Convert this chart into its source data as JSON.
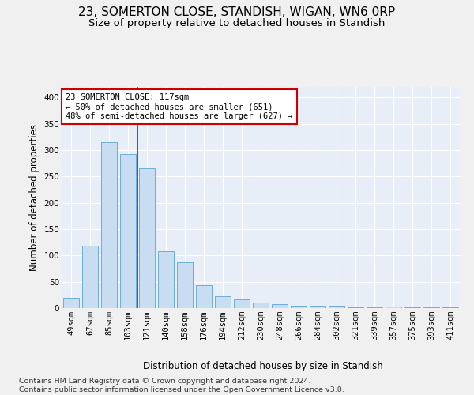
{
  "title": "23, SOMERTON CLOSE, STANDISH, WIGAN, WN6 0RP",
  "subtitle": "Size of property relative to detached houses in Standish",
  "xlabel": "Distribution of detached houses by size in Standish",
  "ylabel": "Number of detached properties",
  "categories": [
    "49sqm",
    "67sqm",
    "85sqm",
    "103sqm",
    "121sqm",
    "140sqm",
    "158sqm",
    "176sqm",
    "194sqm",
    "212sqm",
    "230sqm",
    "248sqm",
    "266sqm",
    "284sqm",
    "302sqm",
    "321sqm",
    "339sqm",
    "357sqm",
    "375sqm",
    "393sqm",
    "411sqm"
  ],
  "values": [
    20,
    118,
    315,
    293,
    265,
    108,
    87,
    43,
    22,
    16,
    10,
    7,
    5,
    4,
    5,
    2,
    1,
    3,
    2,
    1,
    2
  ],
  "bar_color": "#c9ddf2",
  "bar_edge_color": "#6aaed6",
  "vline_color": "#cc0000",
  "vline_x": 3.5,
  "annotation_lines": [
    "23 SOMERTON CLOSE: 117sqm",
    "← 50% of detached houses are smaller (651)",
    "48% of semi-detached houses are larger (627) →"
  ],
  "annotation_box_edgecolor": "#cc0000",
  "ylim": [
    0,
    420
  ],
  "yticks": [
    0,
    50,
    100,
    150,
    200,
    250,
    300,
    350,
    400
  ],
  "plot_bg_color": "#e8eef8",
  "fig_bg_color": "#f0f0f0",
  "grid_color": "#ffffff",
  "title_fontsize": 11,
  "subtitle_fontsize": 9.5,
  "label_fontsize": 8.5,
  "tick_fontsize": 7.5,
  "annotation_fontsize": 7.5,
  "footer_fontsize": 6.8,
  "footer": "Contains HM Land Registry data © Crown copyright and database right 2024.\nContains public sector information licensed under the Open Government Licence v3.0."
}
